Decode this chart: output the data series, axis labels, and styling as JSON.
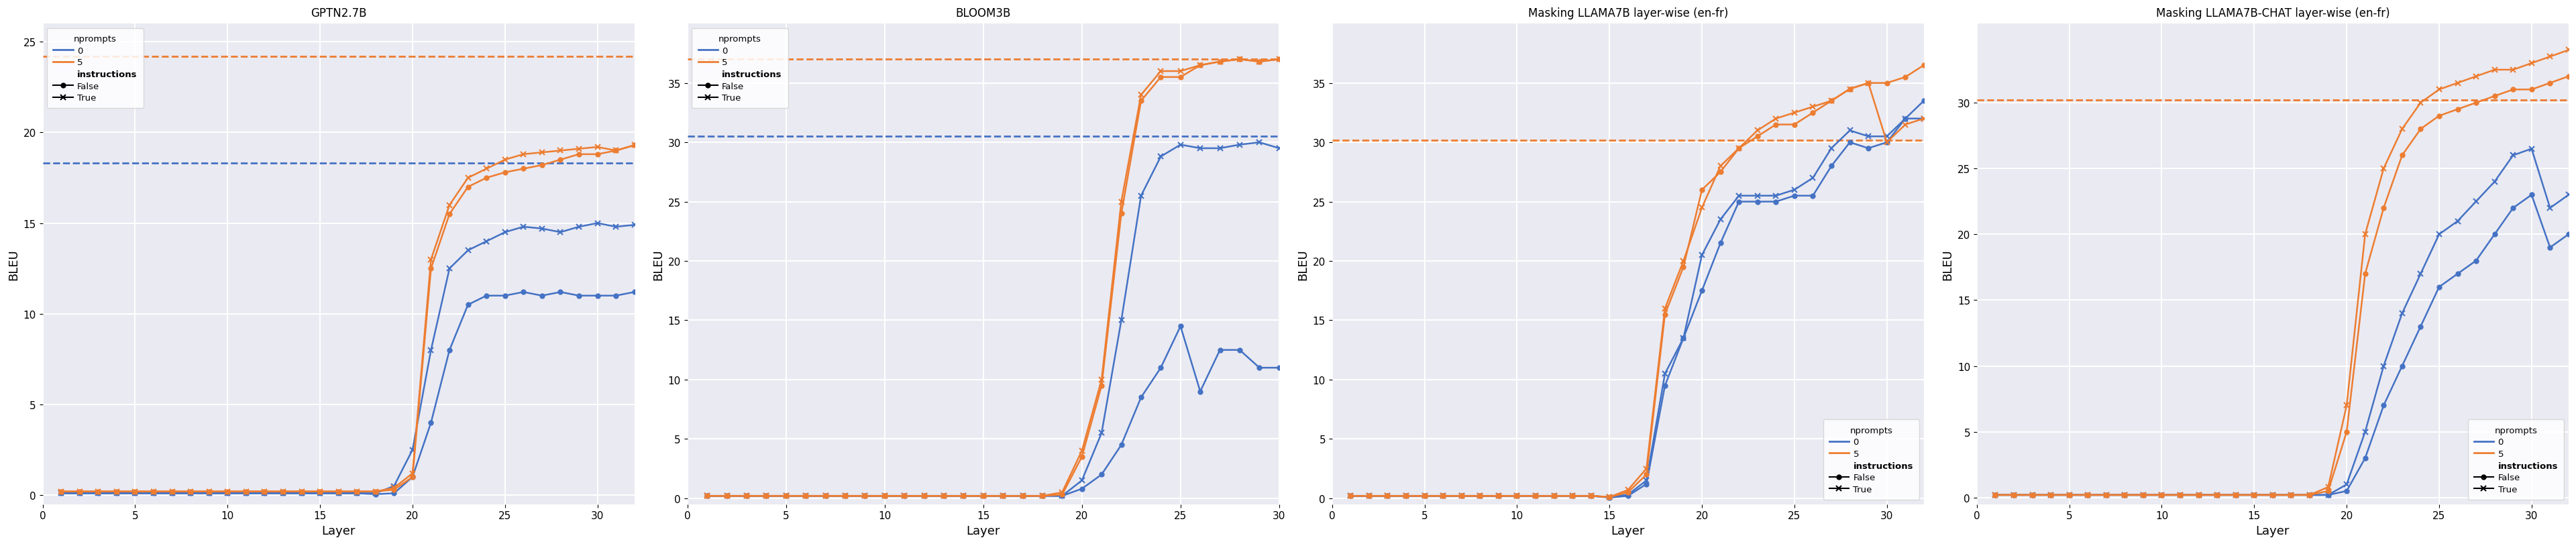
{
  "charts": [
    {
      "title": "GPTN2.7B",
      "xlabel": "Layer",
      "ylabel": "BLEU",
      "xlim": [
        0,
        32
      ],
      "ylim": [
        -0.5,
        26
      ],
      "yticks": [
        0,
        5,
        10,
        15,
        20,
        25
      ],
      "xticks": [
        0,
        5,
        10,
        15,
        20,
        25,
        30
      ],
      "baseline_0": 18.3,
      "baseline_5": 24.2,
      "layers_f0": [
        1,
        2,
        3,
        4,
        5,
        6,
        7,
        8,
        9,
        10,
        11,
        12,
        13,
        14,
        15,
        16,
        17,
        18,
        19,
        20,
        21,
        22,
        23,
        24,
        25,
        26,
        27,
        28,
        29,
        30,
        31,
        32
      ],
      "vals_f0": [
        0.1,
        0.1,
        0.1,
        0.1,
        0.1,
        0.1,
        0.1,
        0.1,
        0.1,
        0.1,
        0.1,
        0.1,
        0.1,
        0.1,
        0.1,
        0.1,
        0.1,
        0.05,
        0.1,
        1.0,
        4.0,
        8.0,
        10.5,
        11.0,
        11.0,
        11.2,
        11.0,
        11.2,
        11.0,
        11.0,
        11.0,
        11.2
      ],
      "layers_t0": [
        1,
        2,
        3,
        4,
        5,
        6,
        7,
        8,
        9,
        10,
        11,
        12,
        13,
        14,
        15,
        16,
        17,
        18,
        19,
        20,
        21,
        22,
        23,
        24,
        25,
        26,
        27,
        28,
        29,
        30,
        31,
        32
      ],
      "vals_t0": [
        0.1,
        0.1,
        0.1,
        0.1,
        0.1,
        0.1,
        0.1,
        0.1,
        0.1,
        0.1,
        0.1,
        0.1,
        0.1,
        0.1,
        0.1,
        0.1,
        0.1,
        0.1,
        0.5,
        2.5,
        8.0,
        12.5,
        13.5,
        14.0,
        14.5,
        14.8,
        14.7,
        14.5,
        14.8,
        15.0,
        14.8,
        14.9
      ],
      "layers_f5": [
        1,
        2,
        3,
        4,
        5,
        6,
        7,
        8,
        9,
        10,
        11,
        12,
        13,
        14,
        15,
        16,
        17,
        18,
        19,
        20,
        21,
        22,
        23,
        24,
        25,
        26,
        27,
        28,
        29,
        30,
        31,
        32
      ],
      "vals_f5": [
        0.2,
        0.2,
        0.2,
        0.2,
        0.2,
        0.2,
        0.2,
        0.2,
        0.2,
        0.2,
        0.2,
        0.2,
        0.2,
        0.2,
        0.2,
        0.2,
        0.2,
        0.2,
        0.3,
        1.0,
        12.5,
        15.5,
        17.0,
        17.5,
        17.8,
        18.0,
        18.2,
        18.5,
        18.8,
        18.8,
        19.0,
        19.3
      ],
      "layers_t5": [
        1,
        2,
        3,
        4,
        5,
        6,
        7,
        8,
        9,
        10,
        11,
        12,
        13,
        14,
        15,
        16,
        17,
        18,
        19,
        20,
        21,
        22,
        23,
        24,
        25,
        26,
        27,
        28,
        29,
        30,
        31,
        32
      ],
      "vals_t5": [
        0.2,
        0.2,
        0.2,
        0.2,
        0.2,
        0.2,
        0.2,
        0.2,
        0.2,
        0.2,
        0.2,
        0.2,
        0.2,
        0.2,
        0.2,
        0.2,
        0.2,
        0.2,
        0.4,
        1.2,
        13.0,
        16.0,
        17.5,
        18.0,
        18.5,
        18.8,
        18.9,
        19.0,
        19.1,
        19.2,
        19.0,
        19.3
      ],
      "legend_loc": "upper left"
    },
    {
      "title": "BLOOM3B",
      "xlabel": "Layer",
      "ylabel": "BLEU",
      "xlim": [
        0,
        30
      ],
      "ylim": [
        -0.5,
        40
      ],
      "yticks": [
        0,
        5,
        10,
        15,
        20,
        25,
        30,
        35
      ],
      "xticks": [
        0,
        5,
        10,
        15,
        20,
        25,
        30
      ],
      "baseline_0": 30.5,
      "baseline_5": 37.0,
      "layers_f0": [
        1,
        2,
        3,
        4,
        5,
        6,
        7,
        8,
        9,
        10,
        11,
        12,
        13,
        14,
        15,
        16,
        17,
        18,
        19,
        20,
        21,
        22,
        23,
        24,
        25,
        26,
        27,
        28,
        29,
        30
      ],
      "vals_f0": [
        0.2,
        0.2,
        0.2,
        0.2,
        0.2,
        0.2,
        0.2,
        0.2,
        0.2,
        0.2,
        0.2,
        0.2,
        0.2,
        0.2,
        0.2,
        0.2,
        0.2,
        0.2,
        0.2,
        0.8,
        2.0,
        4.5,
        8.5,
        11.0,
        14.5,
        9.0,
        12.5,
        12.5,
        11.0,
        11.0
      ],
      "layers_t0": [
        1,
        2,
        3,
        4,
        5,
        6,
        7,
        8,
        9,
        10,
        11,
        12,
        13,
        14,
        15,
        16,
        17,
        18,
        19,
        20,
        21,
        22,
        23,
        24,
        25,
        26,
        27,
        28,
        29,
        30
      ],
      "vals_t0": [
        0.2,
        0.2,
        0.2,
        0.2,
        0.2,
        0.2,
        0.2,
        0.2,
        0.2,
        0.2,
        0.2,
        0.2,
        0.2,
        0.2,
        0.2,
        0.2,
        0.2,
        0.2,
        0.2,
        1.5,
        5.5,
        15.0,
        25.5,
        28.8,
        29.8,
        29.5,
        29.5,
        29.8,
        30.0,
        29.5
      ],
      "layers_f5": [
        1,
        2,
        3,
        4,
        5,
        6,
        7,
        8,
        9,
        10,
        11,
        12,
        13,
        14,
        15,
        16,
        17,
        18,
        19,
        20,
        21,
        22,
        23,
        24,
        25,
        26,
        27,
        28,
        29,
        30
      ],
      "vals_f5": [
        0.2,
        0.2,
        0.2,
        0.2,
        0.2,
        0.2,
        0.2,
        0.2,
        0.2,
        0.2,
        0.2,
        0.2,
        0.2,
        0.2,
        0.2,
        0.2,
        0.2,
        0.2,
        0.3,
        3.5,
        9.5,
        24.0,
        33.5,
        35.5,
        35.5,
        36.5,
        36.8,
        37.0,
        36.8,
        37.0
      ],
      "layers_t5": [
        1,
        2,
        3,
        4,
        5,
        6,
        7,
        8,
        9,
        10,
        11,
        12,
        13,
        14,
        15,
        16,
        17,
        18,
        19,
        20,
        21,
        22,
        23,
        24,
        25,
        26,
        27,
        28,
        29,
        30
      ],
      "vals_t5": [
        0.2,
        0.2,
        0.2,
        0.2,
        0.2,
        0.2,
        0.2,
        0.2,
        0.2,
        0.2,
        0.2,
        0.2,
        0.2,
        0.2,
        0.2,
        0.2,
        0.2,
        0.2,
        0.5,
        4.0,
        10.0,
        25.0,
        34.0,
        36.0,
        36.0,
        36.5,
        36.8,
        37.0,
        36.8,
        37.0
      ],
      "legend_loc": "upper left"
    },
    {
      "title": "Masking LLAMA7B layer-wise (en-fr)",
      "xlabel": "Layer",
      "ylabel": "BLEU",
      "xlim": [
        0,
        32
      ],
      "ylim": [
        -0.5,
        40
      ],
      "yticks": [
        0,
        5,
        10,
        15,
        20,
        25,
        30,
        35
      ],
      "xticks": [
        0,
        5,
        10,
        15,
        20,
        25,
        30
      ],
      "baseline_0": null,
      "baseline_5": 30.2,
      "layers_f0": [
        1,
        2,
        3,
        4,
        5,
        6,
        7,
        8,
        9,
        10,
        11,
        12,
        13,
        14,
        15,
        16,
        17,
        18,
        19,
        20,
        21,
        22,
        23,
        24,
        25,
        26,
        27,
        28,
        29,
        30,
        31,
        32
      ],
      "vals_f0": [
        0.2,
        0.2,
        0.2,
        0.2,
        0.2,
        0.2,
        0.2,
        0.2,
        0.2,
        0.2,
        0.2,
        0.2,
        0.2,
        0.2,
        0.05,
        0.2,
        1.2,
        9.5,
        13.5,
        17.5,
        21.5,
        25.0,
        25.0,
        25.0,
        25.5,
        25.5,
        28.0,
        30.0,
        29.5,
        30.0,
        32.0,
        33.5
      ],
      "layers_t0": [
        1,
        2,
        3,
        4,
        5,
        6,
        7,
        8,
        9,
        10,
        11,
        12,
        13,
        14,
        15,
        16,
        17,
        18,
        19,
        20,
        21,
        22,
        23,
        24,
        25,
        26,
        27,
        28,
        29,
        30,
        31,
        32
      ],
      "vals_t0": [
        0.2,
        0.2,
        0.2,
        0.2,
        0.2,
        0.2,
        0.2,
        0.2,
        0.2,
        0.2,
        0.2,
        0.2,
        0.2,
        0.2,
        0.1,
        0.3,
        1.5,
        10.5,
        13.5,
        20.5,
        23.5,
        25.5,
        25.5,
        25.5,
        26.0,
        27.0,
        29.5,
        31.0,
        30.5,
        30.5,
        32.0,
        32.0
      ],
      "layers_f5": [
        1,
        2,
        3,
        4,
        5,
        6,
        7,
        8,
        9,
        10,
        11,
        12,
        13,
        14,
        15,
        16,
        17,
        18,
        19,
        20,
        21,
        22,
        23,
        24,
        25,
        26,
        27,
        28,
        29,
        30,
        31,
        32
      ],
      "vals_f5": [
        0.2,
        0.2,
        0.2,
        0.2,
        0.2,
        0.2,
        0.2,
        0.2,
        0.2,
        0.2,
        0.2,
        0.2,
        0.2,
        0.2,
        0.1,
        0.5,
        2.0,
        15.5,
        19.5,
        26.0,
        27.5,
        29.5,
        30.5,
        31.5,
        31.5,
        32.5,
        33.5,
        34.5,
        35.0,
        35.0,
        35.5,
        36.5
      ],
      "layers_t5": [
        1,
        2,
        3,
        4,
        5,
        6,
        7,
        8,
        9,
        10,
        11,
        12,
        13,
        14,
        15,
        16,
        17,
        18,
        19,
        20,
        21,
        22,
        23,
        24,
        25,
        26,
        27,
        28,
        29,
        30,
        31,
        32
      ],
      "vals_t5": [
        0.2,
        0.2,
        0.2,
        0.2,
        0.2,
        0.2,
        0.2,
        0.2,
        0.2,
        0.2,
        0.2,
        0.2,
        0.2,
        0.2,
        0.1,
        0.7,
        2.5,
        16.0,
        20.0,
        24.5,
        28.0,
        29.5,
        31.0,
        32.0,
        32.5,
        33.0,
        33.5,
        34.5,
        35.0,
        30.0,
        31.5,
        32.0
      ],
      "legend_loc": "lower right"
    },
    {
      "title": "Masking LLAMA7B-CHAT layer-wise (en-fr)",
      "xlabel": "Layer",
      "ylabel": "BLEU",
      "xlim": [
        0,
        32
      ],
      "ylim": [
        -0.5,
        36
      ],
      "yticks": [
        0,
        5,
        10,
        15,
        20,
        25,
        30
      ],
      "xticks": [
        0,
        5,
        10,
        15,
        20,
        25,
        30
      ],
      "baseline_0": null,
      "baseline_5": 30.2,
      "layers_f0": [
        1,
        2,
        3,
        4,
        5,
        6,
        7,
        8,
        9,
        10,
        11,
        12,
        13,
        14,
        15,
        16,
        17,
        18,
        19,
        20,
        21,
        22,
        23,
        24,
        25,
        26,
        27,
        28,
        29,
        30,
        31,
        32
      ],
      "vals_f0": [
        0.2,
        0.2,
        0.2,
        0.2,
        0.2,
        0.2,
        0.2,
        0.2,
        0.2,
        0.2,
        0.2,
        0.2,
        0.2,
        0.2,
        0.2,
        0.2,
        0.2,
        0.2,
        0.2,
        0.5,
        3.0,
        7.0,
        10.0,
        13.0,
        16.0,
        17.0,
        18.0,
        20.0,
        22.0,
        23.0,
        19.0,
        20.0
      ],
      "layers_t0": [
        1,
        2,
        3,
        4,
        5,
        6,
        7,
        8,
        9,
        10,
        11,
        12,
        13,
        14,
        15,
        16,
        17,
        18,
        19,
        20,
        21,
        22,
        23,
        24,
        25,
        26,
        27,
        28,
        29,
        30,
        31,
        32
      ],
      "vals_t0": [
        0.2,
        0.2,
        0.2,
        0.2,
        0.2,
        0.2,
        0.2,
        0.2,
        0.2,
        0.2,
        0.2,
        0.2,
        0.2,
        0.2,
        0.2,
        0.2,
        0.2,
        0.2,
        0.2,
        1.0,
        5.0,
        10.0,
        14.0,
        17.0,
        20.0,
        21.0,
        22.5,
        24.0,
        26.0,
        26.5,
        22.0,
        23.0
      ],
      "layers_f5": [
        1,
        2,
        3,
        4,
        5,
        6,
        7,
        8,
        9,
        10,
        11,
        12,
        13,
        14,
        15,
        16,
        17,
        18,
        19,
        20,
        21,
        22,
        23,
        24,
        25,
        26,
        27,
        28,
        29,
        30,
        31,
        32
      ],
      "vals_f5": [
        0.2,
        0.2,
        0.2,
        0.2,
        0.2,
        0.2,
        0.2,
        0.2,
        0.2,
        0.2,
        0.2,
        0.2,
        0.2,
        0.2,
        0.2,
        0.2,
        0.2,
        0.2,
        0.5,
        5.0,
        17.0,
        22.0,
        26.0,
        28.0,
        29.0,
        29.5,
        30.0,
        30.5,
        31.0,
        31.0,
        31.5,
        32.0
      ],
      "layers_t5": [
        1,
        2,
        3,
        4,
        5,
        6,
        7,
        8,
        9,
        10,
        11,
        12,
        13,
        14,
        15,
        16,
        17,
        18,
        19,
        20,
        21,
        22,
        23,
        24,
        25,
        26,
        27,
        28,
        29,
        30,
        31,
        32
      ],
      "vals_t5": [
        0.2,
        0.2,
        0.2,
        0.2,
        0.2,
        0.2,
        0.2,
        0.2,
        0.2,
        0.2,
        0.2,
        0.2,
        0.2,
        0.2,
        0.2,
        0.2,
        0.2,
        0.2,
        0.8,
        7.0,
        20.0,
        25.0,
        28.0,
        30.0,
        31.0,
        31.5,
        32.0,
        32.5,
        32.5,
        33.0,
        33.5,
        34.0
      ],
      "legend_loc": "lower right"
    }
  ],
  "color_0": "#4472C4",
  "color_5": "#ED7D31",
  "bg_color": "#EAEAF2",
  "grid_color": "white"
}
